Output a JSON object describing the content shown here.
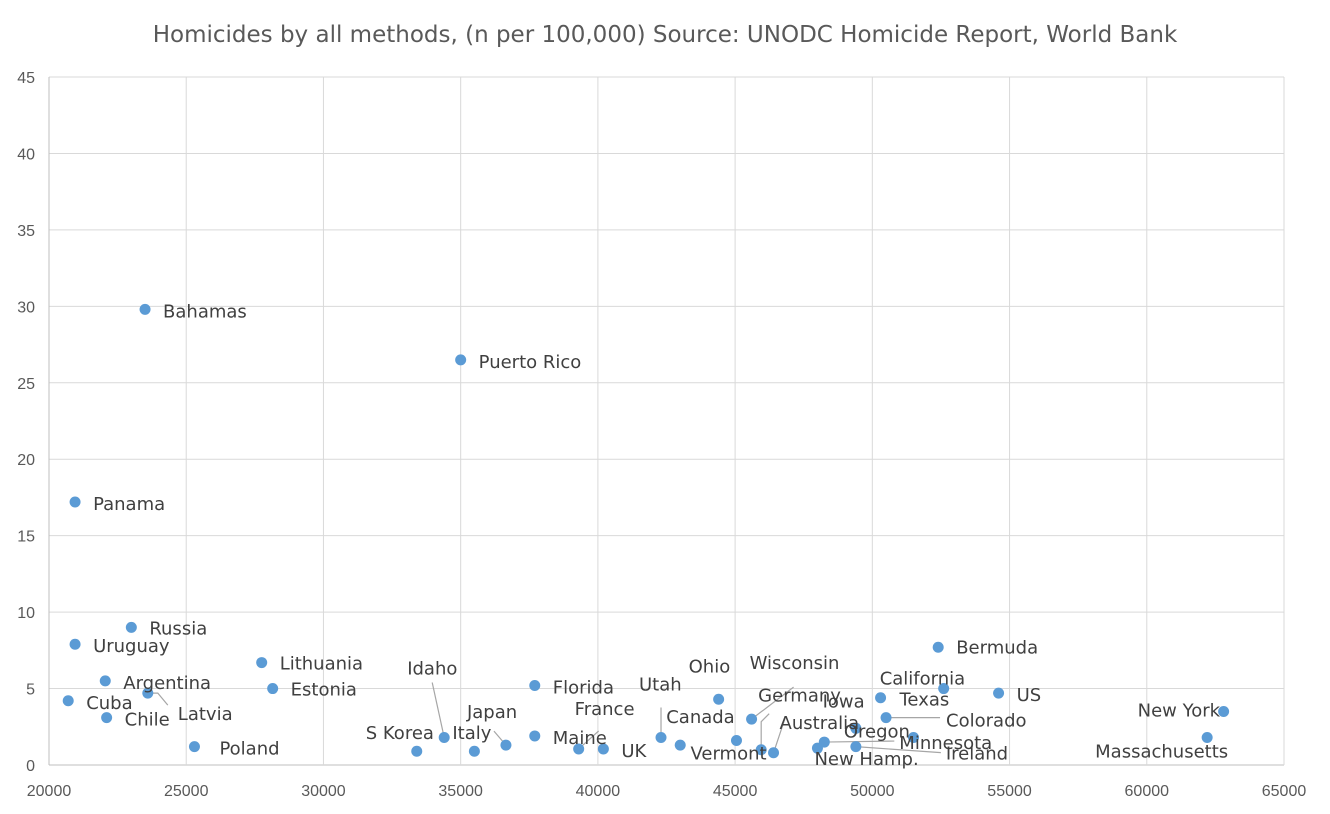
{
  "chart_data": {
    "type": "scatter",
    "title": "Homicides by all methods, (n per 100,000) Source: UNODC Homicide Report, World Bank",
    "xlabel": "",
    "ylabel": "",
    "xlim": [
      20000,
      65000
    ],
    "ylim": [
      0,
      45
    ],
    "x_ticks": [
      "20000",
      "25000",
      "30000",
      "35000",
      "40000",
      "45000",
      "50000",
      "55000",
      "60000",
      "65000"
    ],
    "y_ticks": [
      "0",
      "5",
      "10",
      "15",
      "20",
      "25",
      "30",
      "35",
      "40",
      "45"
    ],
    "grid": true,
    "color": "#5b9bd5",
    "points": [
      {
        "label": "Bahamas",
        "x": 23500,
        "y": 29.8
      },
      {
        "label": "Puerto Rico",
        "x": 35000,
        "y": 26.5
      },
      {
        "label": "Panama",
        "x": 20950,
        "y": 17.2
      },
      {
        "label": "Russia",
        "x": 23000,
        "y": 9.0
      },
      {
        "label": "Uruguay",
        "x": 20950,
        "y": 7.9
      },
      {
        "label": "Bermuda",
        "x": 52400,
        "y": 7.7
      },
      {
        "label": "Lithuania",
        "x": 27750,
        "y": 6.7
      },
      {
        "label": "Argentina",
        "x": 22050,
        "y": 5.5
      },
      {
        "label": "Florida",
        "x": 37700,
        "y": 5.2
      },
      {
        "label": "Estonia",
        "x": 28150,
        "y": 5.0
      },
      {
        "label": "California",
        "x": 52600,
        "y": 5.0
      },
      {
        "label": "Latvia",
        "x": 23600,
        "y": 4.7
      },
      {
        "label": "US",
        "x": 54600,
        "y": 4.7
      },
      {
        "label": "Iowa",
        "x": 50300,
        "y": 4.4
      },
      {
        "label": "Ohio",
        "x": 44400,
        "y": 4.3
      },
      {
        "label": "Cuba",
        "x": 20700,
        "y": 4.2
      },
      {
        "label": "New York",
        "x": 62800,
        "y": 3.5
      },
      {
        "label": "Chile",
        "x": 22100,
        "y": 3.1
      },
      {
        "label": "Colorado",
        "x": 50500,
        "y": 3.1
      },
      {
        "label": "Wisconsin",
        "x": 45600,
        "y": 3.0
      },
      {
        "label": "Oregon",
        "x": 49400,
        "y": 2.4
      },
      {
        "label": "Idaho",
        "x": 34400,
        "y": 1.8
      },
      {
        "label": "Utah",
        "x": 42300,
        "y": 1.8
      },
      {
        "label": "Texas",
        "x": 51500,
        "y": 1.8
      },
      {
        "label": "Massachusetts",
        "x": 62200,
        "y": 1.8
      },
      {
        "label": "Maine",
        "x": 37700,
        "y": 1.9
      },
      {
        "label": "Vermont",
        "x": 45050,
        "y": 1.6
      },
      {
        "label": "Minnesota",
        "x": 48250,
        "y": 1.5
      },
      {
        "label": "Japan",
        "x": 36650,
        "y": 1.3
      },
      {
        "label": "Canada",
        "x": 43000,
        "y": 1.3
      },
      {
        "label": "Poland",
        "x": 25300,
        "y": 1.2
      },
      {
        "label": "Ireland",
        "x": 49400,
        "y": 1.2
      },
      {
        "label": "Germany",
        "x": 45950,
        "y": 1.0
      },
      {
        "label": "France",
        "x": 39300,
        "y": 1.05
      },
      {
        "label": "UK",
        "x": 40200,
        "y": 1.05
      },
      {
        "label": "New Hamp.",
        "x": 48000,
        "y": 1.1
      },
      {
        "label": "S Korea",
        "x": 33400,
        "y": 0.9
      },
      {
        "label": "Italy",
        "x": 35500,
        "y": 0.9
      },
      {
        "label": "Australia",
        "x": 46400,
        "y": 0.8
      }
    ]
  }
}
